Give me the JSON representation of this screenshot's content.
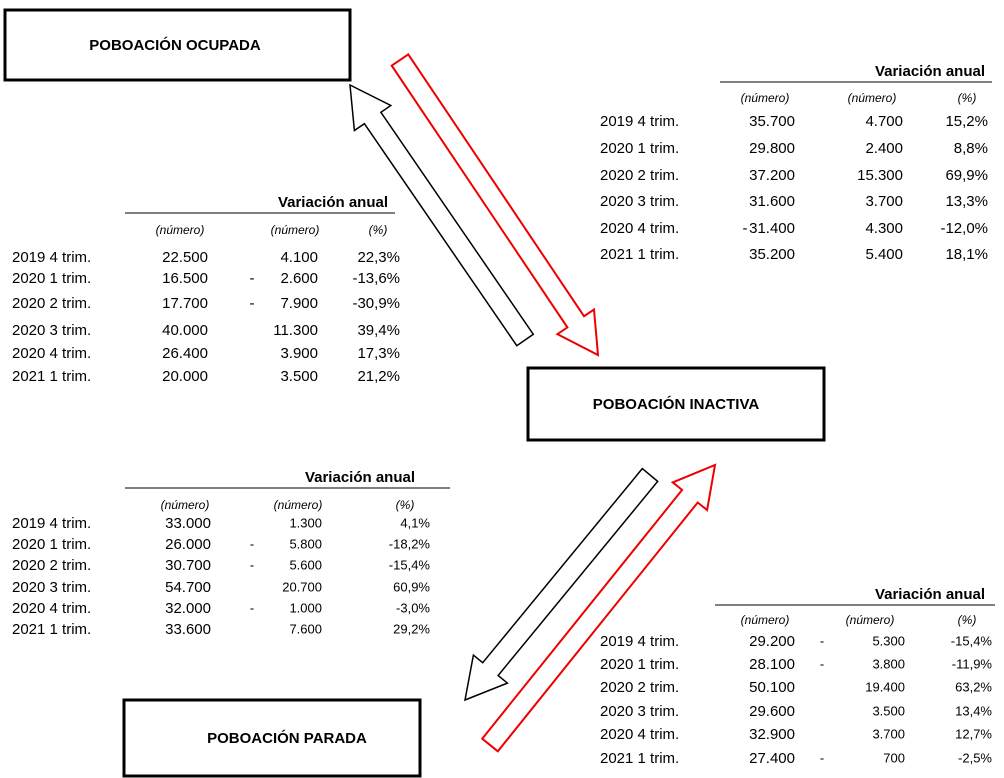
{
  "nodes": [
    {
      "label": "POBOACIÓN OCUPADA"
    },
    {
      "label": "POBOACIÓN INACTIVA"
    },
    {
      "label": "POBOACIÓN PARADA"
    }
  ],
  "tables": [
    {
      "header": "Variación anual",
      "subheaders": [
        "(número)",
        "(número)",
        "(%)"
      ],
      "rows": [
        [
          "2019 4 trim.",
          "35.700",
          null,
          "4.700",
          "15,2%"
        ],
        [
          "2020 1 trim.",
          "29.800",
          null,
          "2.400",
          "8,8%"
        ],
        [
          "2020 2 trim.",
          "37.200",
          null,
          "15.300",
          "69,9%"
        ],
        [
          "2020 3 trim.",
          "31.600",
          null,
          "3.700",
          "13,3%"
        ],
        [
          "2020 4 trim.",
          "31.400",
          "-",
          "4.300",
          "-12,0%"
        ],
        [
          "2021 1 trim.",
          "35.200",
          null,
          "5.400",
          "18,1%"
        ]
      ]
    },
    {
      "header": "Variación anual",
      "subheaders": [
        "(número)",
        "(número)",
        "(%)"
      ],
      "rows": [
        [
          "2019 4 trim.",
          "22.500",
          null,
          "4.100",
          "22,3%"
        ],
        [
          "2020 1 trim.",
          "16.500",
          "-",
          "2.600",
          "-13,6%"
        ],
        [
          "2020 2 trim.",
          "17.700",
          "-",
          "7.900",
          "-30,9%"
        ],
        [
          "2020 3 trim.",
          "40.000",
          null,
          "11.300",
          "39,4%"
        ],
        [
          "2020 4 trim.",
          "26.400",
          null,
          "3.900",
          "17,3%"
        ],
        [
          "2021 1 trim.",
          "20.000",
          null,
          "3.500",
          "21,2%"
        ]
      ]
    },
    {
      "header": "Variación anual",
      "subheaders": [
        "(número)",
        "(número)",
        "(%)"
      ],
      "rows": [
        [
          "2019 4 trim.",
          "33.000",
          null,
          "1.300",
          "4,1%"
        ],
        [
          "2020 1 trim.",
          "26.000",
          "-",
          "5.800",
          "-18,2%"
        ],
        [
          "2020 2 trim.",
          "30.700",
          "-",
          "5.600",
          "-15,4%"
        ],
        [
          "2020 3 trim.",
          "54.700",
          null,
          "20.700",
          "60,9%"
        ],
        [
          "2020 4 trim.",
          "32.000",
          "-",
          "1.000",
          "-3,0%"
        ],
        [
          "2021 1 trim.",
          "33.600",
          null,
          "7.600",
          "29,2%"
        ]
      ]
    },
    {
      "header": "Variación anual",
      "subheaders": [
        "(número)",
        "(número)",
        "(%)"
      ],
      "rows": [
        [
          "2019 4 trim.",
          "29.200",
          "-",
          "5.300",
          "-15,4%"
        ],
        [
          "2020 1 trim.",
          "28.100",
          "-",
          "3.800",
          "-11,9%"
        ],
        [
          "2020 2 trim.",
          "50.100",
          null,
          "19.400",
          "63,2%"
        ],
        [
          "2020 3 trim.",
          "29.600",
          null,
          "3.500",
          "13,4%"
        ],
        [
          "2020 4 trim.",
          "32.900",
          null,
          "3.700",
          "12,7%"
        ],
        [
          "2021 1 trim.",
          "27.400",
          "-",
          "700",
          "-2,5%"
        ]
      ]
    }
  ]
}
